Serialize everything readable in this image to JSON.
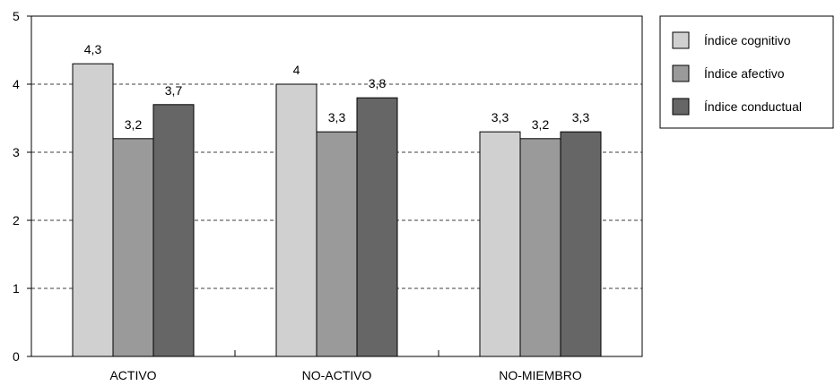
{
  "chart_data": {
    "type": "bar",
    "categories": [
      "ACTIVO",
      "NO-ACTIVO",
      "NO-MIEMBRO"
    ],
    "series": [
      {
        "name": "Índice cognitivo",
        "values": [
          4.3,
          4,
          3.3
        ],
        "value_labels": [
          "4,3",
          "4",
          "3,3"
        ]
      },
      {
        "name": "Índice afectivo",
        "values": [
          3.2,
          3.3,
          3.2
        ],
        "value_labels": [
          "3,2",
          "3,3",
          "3,2"
        ]
      },
      {
        "name": "Índice conductual",
        "values": [
          3.7,
          3.8,
          3.3
        ],
        "value_labels": [
          "3,7",
          "3,8",
          "3,3"
        ]
      }
    ],
    "ylim": [
      0,
      5
    ],
    "yticks": [
      0,
      1,
      2,
      3,
      4,
      5
    ],
    "title": "",
    "xlabel": "",
    "ylabel": "",
    "grid": "horizontal dashed",
    "legend_position": "right",
    "colors": [
      "#d0d0d0",
      "#9a9a9a",
      "#666666"
    ]
  }
}
